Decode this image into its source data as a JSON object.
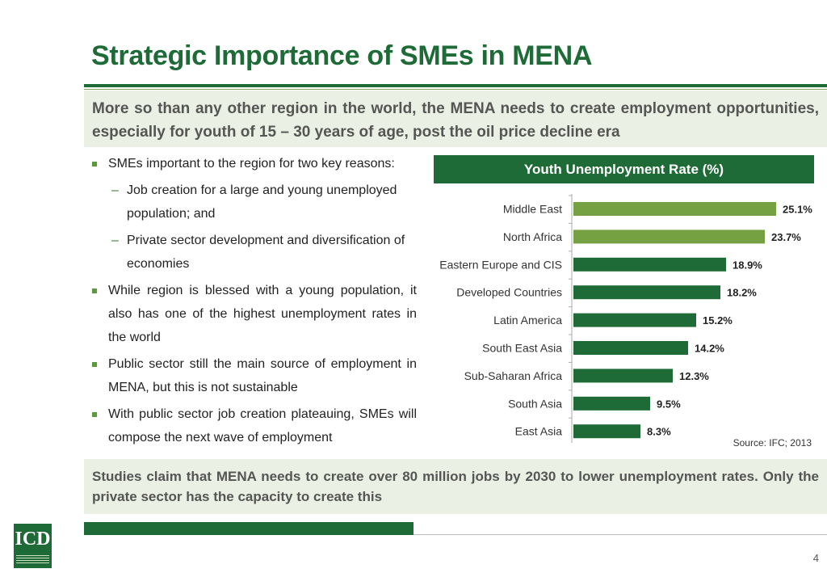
{
  "slide": {
    "title": "Strategic Importance of SMEs in MENA",
    "page_number": "4"
  },
  "top_callout": {
    "text": "More so than any other region in the world, the MENA needs to create employment opportunities, especially for youth of 15 – 30 years of age, post the oil price decline era"
  },
  "bullets": {
    "b1": "SMEs important to the region for two key reasons:",
    "b1_sub1": "Job creation for a large and young unemployed population; and",
    "b1_sub2": "Private sector development and diversification of economies",
    "b2": "While region is blessed with a young population, it also has one of the highest unemployment rates in the world",
    "b3": "Public sector still the main source of employment in MENA, but this is not sustainable",
    "b4": "With public sector job creation plateauing, SMEs will compose the next wave of employment"
  },
  "bottom_callout": {
    "text": "Studies claim that MENA needs to create over 80 million jobs by 2030 to lower unemployment rates. Only the private sector has the capacity to create this"
  },
  "colors": {
    "dark_green": "#1e6b37",
    "light_green": "#76a143",
    "callout_bg": "#eaf0e3"
  },
  "chart_data": {
    "type": "bar",
    "orientation": "horizontal",
    "title": "Youth Unemployment Rate (%)",
    "source": "Source: IFC; 2013",
    "categories": [
      "Middle East",
      "North Africa",
      "Eastern Europe and CIS",
      "Developed Countries",
      "Latin America",
      "South East Asia",
      "Sub-Saharan Africa",
      "South Asia",
      "East Asia"
    ],
    "values": [
      25.1,
      23.7,
      18.9,
      18.2,
      15.2,
      14.2,
      12.3,
      9.5,
      8.3
    ],
    "labels": [
      "25.1%",
      "23.7%",
      "18.9%",
      "18.2%",
      "15.2%",
      "14.2%",
      "12.3%",
      "9.5%",
      "8.3%"
    ],
    "highlight": [
      true,
      true,
      false,
      false,
      false,
      false,
      false,
      false,
      false
    ],
    "xlim": [
      0,
      30
    ]
  }
}
